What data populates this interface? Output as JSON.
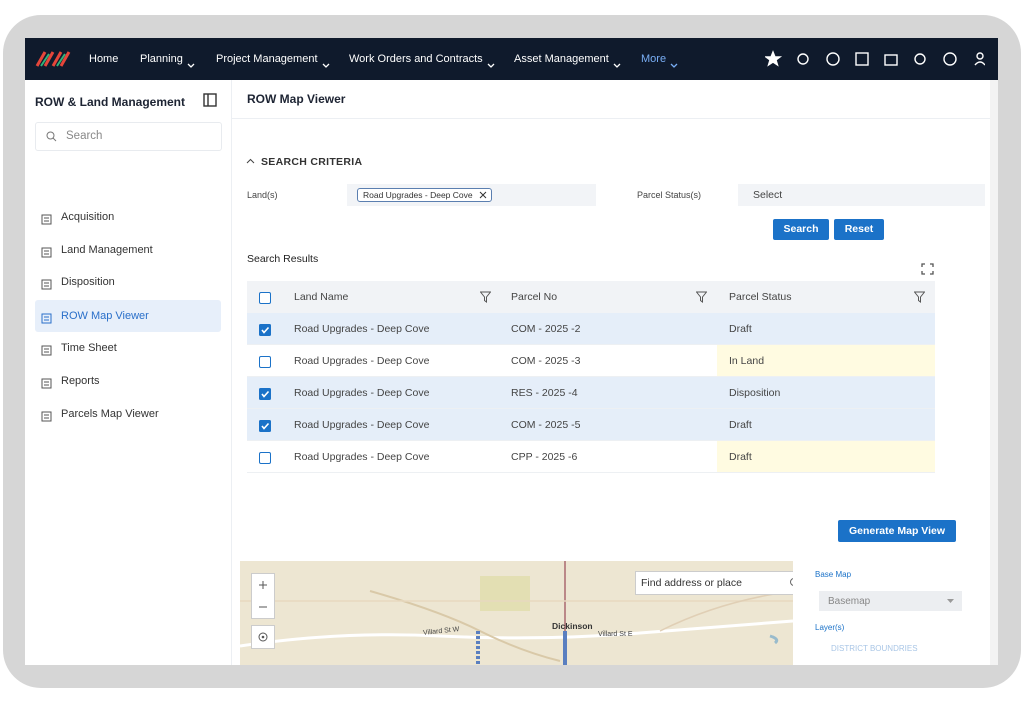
{
  "nav": {
    "items": [
      "Home",
      "Planning",
      "Project Management",
      "Work Orders and Contracts",
      "Asset Management",
      "More"
    ]
  },
  "sidebar": {
    "title": "ROW & Land Management",
    "search_placeholder": "Search",
    "active": 3,
    "items": [
      "Acquisition",
      "Land Management",
      "Disposition",
      "ROW Map Viewer",
      "Time Sheet",
      "Reports",
      "Parcels Map Viewer"
    ]
  },
  "page": {
    "title": "ROW Map Viewer"
  },
  "criteria": {
    "heading": "SEARCH CRITERIA",
    "land_label": "Land(s)",
    "land_tag": "Road Upgrades - Deep Cove",
    "status_label": "Parcel Status(s)",
    "status_placeholder": "Select",
    "search_button": "Search",
    "reset_button": "Reset"
  },
  "results": {
    "title": "Search Results",
    "columns": [
      "Land Name",
      "Parcel No",
      "Parcel Status"
    ],
    "rows": [
      [
        "Road Upgrades - Deep Cove",
        "COM - 2025 -2",
        "Draft"
      ],
      [
        "Road Upgrades - Deep Cove",
        "COM - 2025 -3",
        "In Land"
      ],
      [
        "Road Upgrades - Deep Cove",
        "RES - 2025 -4",
        "Disposition"
      ],
      [
        "Road Upgrades - Deep Cove",
        "COM - 2025 -5",
        "Draft"
      ],
      [
        "Road Upgrades - Deep Cove",
        "CPP - 2025 -6",
        "Draft"
      ]
    ],
    "checked": [
      true,
      false,
      true,
      true,
      false
    ]
  },
  "map": {
    "button": "Generate Map View",
    "search_placeholder": "Find address or place",
    "city": "Dickinson",
    "street_west": "Villard St W",
    "street_east": "Villard St E",
    "base_map_label": "Base Map",
    "base_map_value": "Basemap",
    "layers_label": "Layer(s)",
    "layer": "DISTRICT BOUNDRIES"
  }
}
